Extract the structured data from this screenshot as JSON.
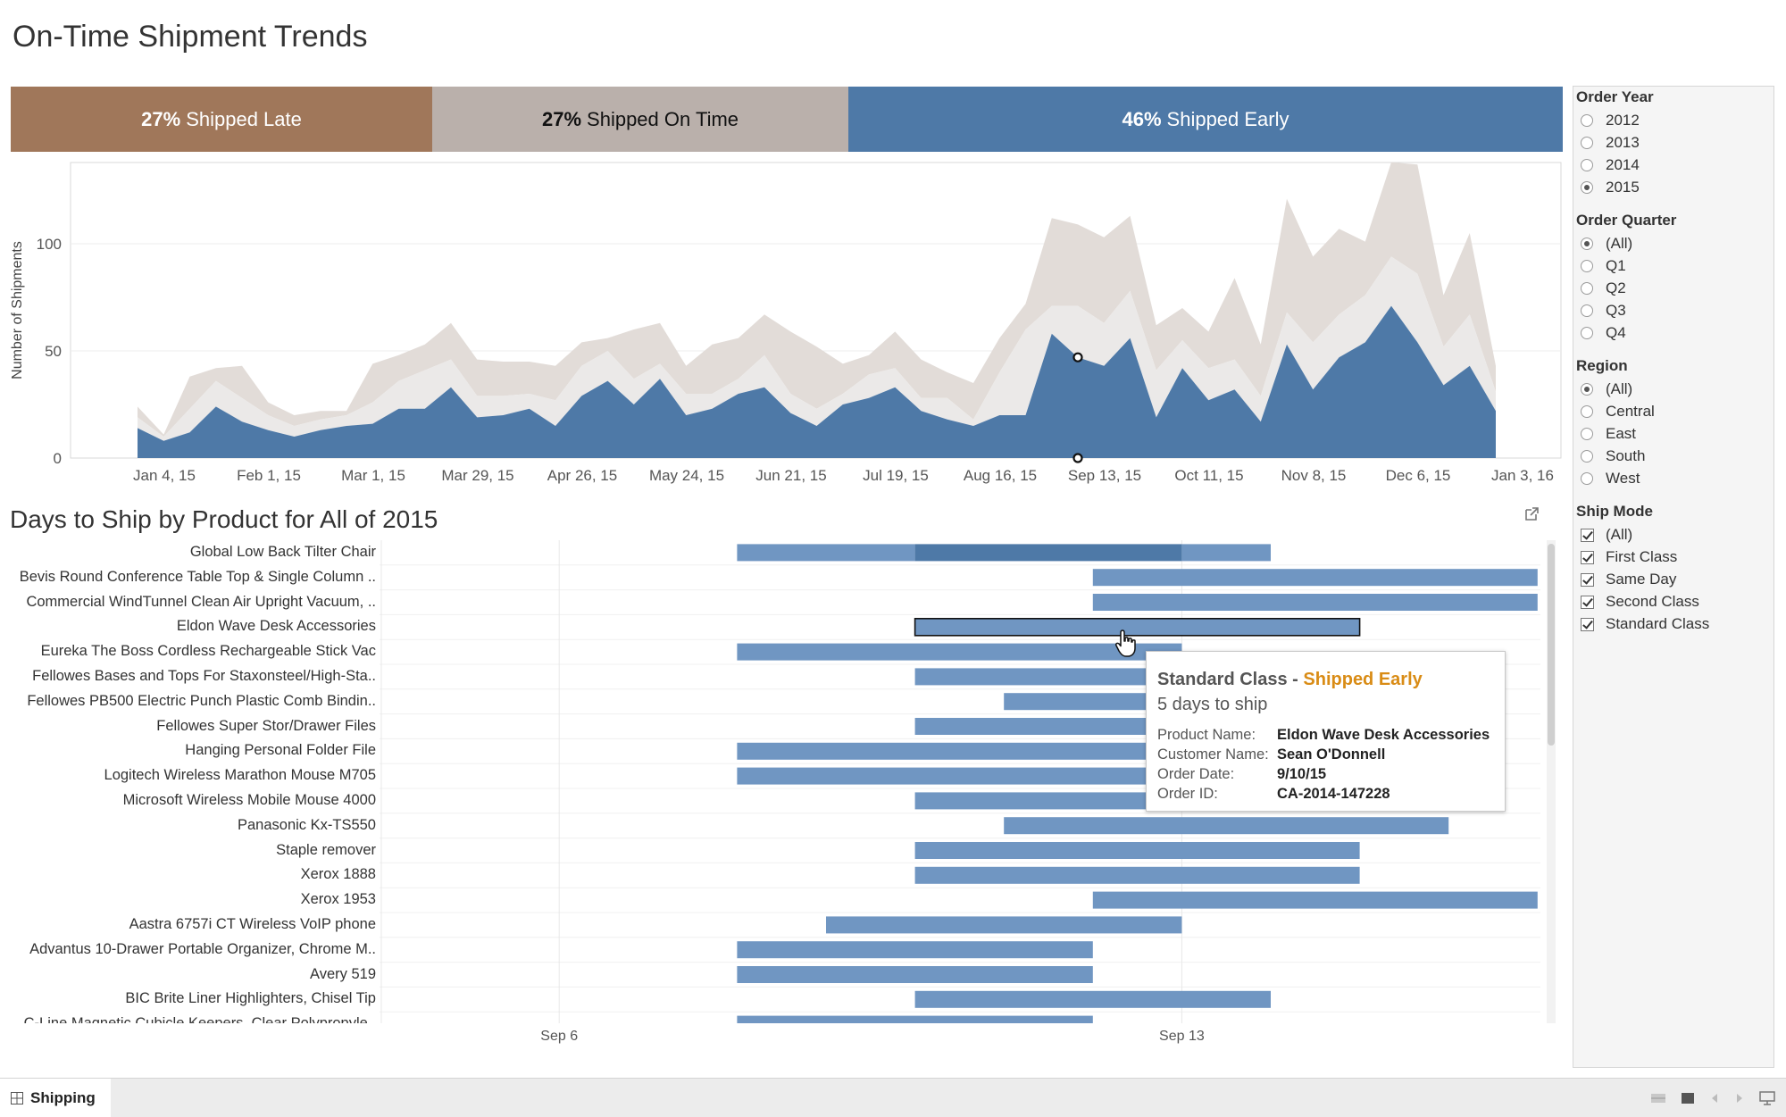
{
  "title": "On-Time Shipment Trends",
  "kpis": {
    "late": {
      "percent": "27%",
      "label": "Shipped Late",
      "color": "#a0775a"
    },
    "on_time": {
      "percent": "27%",
      "label": "Shipped On Time",
      "color": "#bab0ab"
    },
    "early": {
      "percent": "46%",
      "label": "Shipped Early",
      "color": "#4e79a7"
    }
  },
  "chart_data": [
    {
      "type": "area",
      "stacked": true,
      "ylabel": "Number of Shipments",
      "ylim": [
        0,
        140
      ],
      "yticks": [
        0,
        50,
        100
      ],
      "x_tick_labels": [
        "Jan 4, 15",
        "Feb 1, 15",
        "Mar 1, 15",
        "Mar 29, 15",
        "Apr 26, 15",
        "May 24, 15",
        "Jun 21, 15",
        "Jul 19, 15",
        "Aug 16, 15",
        "Sep 13, 15",
        "Oct 11, 15",
        "Nov 8, 15",
        "Dec 6, 15",
        "Jan 3, 16"
      ],
      "weeks_per_tick": 4,
      "series_colors": [
        "#4e79a7",
        "#ebe9e8",
        "#e2dcd8"
      ],
      "series": [
        {
          "values": [
            14,
            8,
            12,
            24,
            17,
            13,
            10,
            13,
            15,
            16,
            23,
            23,
            33,
            19,
            20,
            23,
            15,
            29,
            36,
            25,
            37,
            20,
            23,
            30,
            33,
            21,
            15,
            25,
            28,
            33,
            22,
            18,
            15,
            20,
            20,
            58,
            47,
            43,
            56,
            19,
            42,
            27,
            32,
            17,
            53,
            32,
            47,
            54,
            71,
            54,
            34,
            43,
            22
          ]
        },
        {
          "values": [
            5,
            2,
            11,
            12,
            11,
            7,
            5,
            5,
            5,
            10,
            13,
            18,
            13,
            10,
            9,
            7,
            12,
            14,
            14,
            12,
            7,
            10,
            7,
            7,
            15,
            9,
            8,
            5,
            11,
            9,
            6,
            10,
            3,
            20,
            40,
            13,
            24,
            20,
            22,
            22,
            13,
            15,
            14,
            12,
            15,
            22,
            20,
            22,
            23,
            32,
            18,
            24,
            9
          ]
        },
        {
          "values": [
            5,
            1,
            15,
            6,
            15,
            6,
            5,
            4,
            2,
            18,
            12,
            12,
            17,
            17,
            16,
            15,
            16,
            11,
            6,
            23,
            19,
            13,
            23,
            19,
            19,
            29,
            29,
            14,
            9,
            17,
            18,
            12,
            17,
            16,
            12,
            41,
            38,
            40,
            35,
            21,
            15,
            17,
            38,
            24,
            53,
            40,
            40,
            25,
            44,
            51,
            24,
            38,
            12
          ]
        }
      ],
      "markers": [
        {
          "week": 36,
          "value": 47
        },
        {
          "week": 36,
          "value": 0
        }
      ]
    },
    {
      "type": "gantt",
      "title": "Days to Ship by Product for All of 2015",
      "x_tick_labels": [
        "Sep 6",
        "Sep 13"
      ],
      "x_start": "Sep 4",
      "x_day_range": [
        0,
        12.3
      ],
      "tick_days": [
        2,
        9
      ],
      "rows": [
        {
          "label": "Global Low Back Tilter Chair",
          "segments": [
            {
              "start": 4,
              "end": 6,
              "shade": "light"
            },
            {
              "start": 6,
              "end": 9,
              "shade": "dark"
            },
            {
              "start": 9,
              "end": 10,
              "shade": "light"
            }
          ]
        },
        {
          "label": "Bevis Round Conference Table Top & Single Column ..",
          "segments": [
            {
              "start": 8,
              "end": 13,
              "shade": "light"
            }
          ]
        },
        {
          "label": "Commercial WindTunnel Clean Air Upright Vacuum, ..",
          "segments": [
            {
              "start": 8,
              "end": 13,
              "shade": "light"
            }
          ]
        },
        {
          "label": "Eldon Wave Desk Accessories",
          "segments": [
            {
              "start": 6,
              "end": 11,
              "shade": "light",
              "selected": true
            }
          ]
        },
        {
          "label": "Eureka The Boss Cordless Rechargeable Stick Vac",
          "segments": [
            {
              "start": 4,
              "end": 9,
              "shade": "light"
            }
          ]
        },
        {
          "label": "Fellowes Bases and Tops For Staxonsteel/High-Sta..",
          "segments": [
            {
              "start": 6,
              "end": 11,
              "shade": "light"
            }
          ]
        },
        {
          "label": "Fellowes PB500 Electric Punch Plastic Comb Bindin..",
          "segments": [
            {
              "start": 7,
              "end": 12,
              "shade": "light"
            }
          ]
        },
        {
          "label": "Fellowes Super Stor/Drawer Files",
          "segments": [
            {
              "start": 6,
              "end": 11,
              "shade": "light"
            }
          ]
        },
        {
          "label": "Hanging Personal Folder File",
          "segments": [
            {
              "start": 4,
              "end": 9,
              "shade": "light"
            }
          ]
        },
        {
          "label": "Logitech Wireless Marathon Mouse M705",
          "segments": [
            {
              "start": 4,
              "end": 9,
              "shade": "light"
            }
          ]
        },
        {
          "label": "Microsoft Wireless Mobile Mouse 4000",
          "segments": [
            {
              "start": 6,
              "end": 11,
              "shade": "light"
            }
          ]
        },
        {
          "label": "Panasonic Kx-TS550",
          "segments": [
            {
              "start": 7,
              "end": 12,
              "shade": "light"
            }
          ]
        },
        {
          "label": "Staple remover",
          "segments": [
            {
              "start": 6,
              "end": 11,
              "shade": "light"
            }
          ]
        },
        {
          "label": "Xerox 1888",
          "segments": [
            {
              "start": 6,
              "end": 11,
              "shade": "light"
            }
          ]
        },
        {
          "label": "Xerox 1953",
          "segments": [
            {
              "start": 8,
              "end": 13,
              "shade": "light"
            }
          ]
        },
        {
          "label": "Aastra 6757i CT Wireless VoIP phone",
          "segments": [
            {
              "start": 5,
              "end": 9,
              "shade": "light"
            }
          ]
        },
        {
          "label": "Advantus 10-Drawer Portable Organizer, Chrome M..",
          "segments": [
            {
              "start": 4,
              "end": 8,
              "shade": "light"
            }
          ]
        },
        {
          "label": "Avery 519",
          "segments": [
            {
              "start": 4,
              "end": 8,
              "shade": "light"
            }
          ]
        },
        {
          "label": "BIC Brite Liner Highlighters, Chisel Tip",
          "segments": [
            {
              "start": 6,
              "end": 10,
              "shade": "light"
            }
          ]
        },
        {
          "label": "C-Line Magnetic Cubicle Keepers, Clear Polypropyle..",
          "segments": [
            {
              "start": 4,
              "end": 8,
              "shade": "light"
            }
          ]
        }
      ]
    }
  ],
  "gantt_title": "Days to Ship by Product for All of 2015",
  "gantt_ticks": [
    "Sep 6",
    "Sep 13"
  ],
  "tooltip": {
    "mode": "Standard Class",
    "separator": " - ",
    "status": "Shipped Early",
    "status_color": "#d98c16",
    "days": "5 days to ship",
    "fields": [
      {
        "key": "Product Name:",
        "value": "Eldon Wave Desk Accessories"
      },
      {
        "key": "Customer Name:",
        "value": "Sean O'Donnell"
      },
      {
        "key": "Order Date:",
        "value": "9/10/15"
      },
      {
        "key": "Order ID:",
        "value": "CA-2014-147228"
      }
    ]
  },
  "filters": {
    "order_year": {
      "title": "Order Year",
      "options": [
        "2012",
        "2013",
        "2014",
        "2015"
      ],
      "selected": "2015"
    },
    "order_quarter": {
      "title": "Order Quarter",
      "options": [
        "(All)",
        "Q1",
        "Q2",
        "Q3",
        "Q4"
      ],
      "selected": "(All)"
    },
    "region": {
      "title": "Region",
      "options": [
        "(All)",
        "Central",
        "East",
        "South",
        "West"
      ],
      "selected": "(All)"
    },
    "ship_mode": {
      "title": "Ship Mode",
      "options": [
        "(All)",
        "First Class",
        "Same Day",
        "Second Class",
        "Standard Class"
      ],
      "checked": [
        "(All)",
        "First Class",
        "Same Day",
        "Second Class",
        "Standard Class"
      ]
    }
  },
  "tabs": [
    {
      "label": "Shipping",
      "icon": "grid-icon"
    }
  ],
  "icons": {
    "popout": "popout-icon",
    "cursor": "hand-pointer-icon"
  }
}
